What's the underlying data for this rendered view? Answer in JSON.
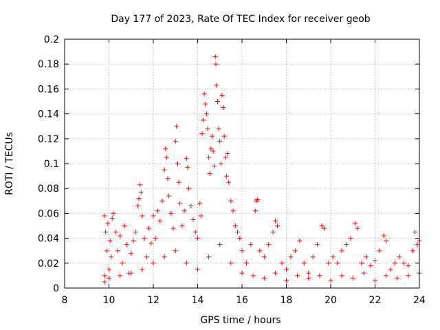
{
  "chart_data": {
    "type": "scatter",
    "title": "Day 177 of 2023, Rate Of TEC Index for receiver geob",
    "xlabel": "GPS time / hours",
    "ylabel": "ROTI / TECUs",
    "xlim": [
      8,
      24
    ],
    "ylim": [
      0,
      0.2
    ],
    "x_ticks": [
      "8",
      "10",
      "12",
      "14",
      "16",
      "18",
      "20",
      "22",
      "24"
    ],
    "y_ticks": [
      "0",
      "0.02",
      "0.04",
      "0.06",
      "0.08",
      "0.1",
      "0.12",
      "0.14",
      "0.16",
      "0.18",
      "0.2"
    ],
    "grid": true,
    "marker": "+",
    "color": "#ff0000",
    "series": [
      {
        "name": "ROTI",
        "points": [
          [
            9.8,
            0.005
          ],
          [
            9.8,
            0.058
          ],
          [
            9.85,
            0.045
          ],
          [
            9.9,
            0.03
          ],
          [
            9.95,
            0.052
          ],
          [
            10.0,
            0.015
          ],
          [
            10.05,
            0.038
          ],
          [
            10.1,
            0.025
          ],
          [
            10.15,
            0.056
          ],
          [
            10.2,
            0.06
          ],
          [
            10.3,
            0.045
          ],
          [
            10.4,
            0.03
          ],
          [
            10.5,
            0.042
          ],
          [
            10.6,
            0.02
          ],
          [
            10.7,
            0.05
          ],
          [
            10.8,
            0.035
          ],
          [
            10.9,
            0.012
          ],
          [
            11.0,
            0.028
          ],
          [
            11.1,
            0.038
          ],
          [
            11.2,
            0.045
          ],
          [
            11.3,
            0.066
          ],
          [
            11.35,
            0.072
          ],
          [
            11.4,
            0.083
          ],
          [
            11.45,
            0.077
          ],
          [
            11.5,
            0.058
          ],
          [
            11.6,
            0.04
          ],
          [
            11.7,
            0.025
          ],
          [
            11.8,
            0.048
          ],
          [
            11.9,
            0.036
          ],
          [
            12.0,
            0.058
          ],
          [
            12.1,
            0.04
          ],
          [
            12.2,
            0.062
          ],
          [
            12.3,
            0.054
          ],
          [
            12.4,
            0.07
          ],
          [
            12.5,
            0.095
          ],
          [
            12.55,
            0.112
          ],
          [
            12.6,
            0.105
          ],
          [
            12.65,
            0.088
          ],
          [
            12.7,
            0.074
          ],
          [
            12.8,
            0.06
          ],
          [
            12.9,
            0.048
          ],
          [
            13.0,
            0.118
          ],
          [
            13.05,
            0.13
          ],
          [
            13.1,
            0.1
          ],
          [
            13.15,
            0.085
          ],
          [
            13.2,
            0.068
          ],
          [
            13.3,
            0.05
          ],
          [
            13.4,
            0.062
          ],
          [
            13.5,
            0.104
          ],
          [
            13.55,
            0.097
          ],
          [
            13.6,
            0.08
          ],
          [
            13.7,
            0.066
          ],
          [
            13.8,
            0.055
          ],
          [
            13.9,
            0.045
          ],
          [
            14.0,
            0.04
          ],
          [
            14.1,
            0.068
          ],
          [
            14.15,
            0.058
          ],
          [
            14.2,
            0.124
          ],
          [
            14.25,
            0.135
          ],
          [
            14.3,
            0.156
          ],
          [
            14.35,
            0.148
          ],
          [
            14.4,
            0.14
          ],
          [
            14.45,
            0.128
          ],
          [
            14.5,
            0.105
          ],
          [
            14.55,
            0.092
          ],
          [
            14.6,
            0.112
          ],
          [
            14.65,
            0.122
          ],
          [
            14.7,
            0.11
          ],
          [
            14.75,
            0.098
          ],
          [
            14.8,
            0.186
          ],
          [
            14.82,
            0.18
          ],
          [
            14.85,
            0.163
          ],
          [
            14.9,
            0.15
          ],
          [
            14.95,
            0.128
          ],
          [
            15.0,
            0.118
          ],
          [
            15.05,
            0.1
          ],
          [
            15.1,
            0.155
          ],
          [
            15.15,
            0.145
          ],
          [
            15.2,
            0.122
          ],
          [
            15.25,
            0.105
          ],
          [
            15.3,
            0.09
          ],
          [
            15.35,
            0.108
          ],
          [
            15.4,
            0.085
          ],
          [
            15.5,
            0.07
          ],
          [
            15.6,
            0.062
          ],
          [
            15.7,
            0.05
          ],
          [
            15.8,
            0.045
          ],
          [
            15.9,
            0.04
          ],
          [
            16.0,
            0.03
          ],
          [
            16.2,
            0.02
          ],
          [
            16.4,
            0.035
          ],
          [
            16.6,
            0.062
          ],
          [
            16.65,
            0.07
          ],
          [
            16.7,
            0.071
          ],
          [
            16.8,
            0.03
          ],
          [
            17.0,
            0.025
          ],
          [
            17.2,
            0.035
          ],
          [
            17.4,
            0.045
          ],
          [
            17.5,
            0.054
          ],
          [
            17.6,
            0.05
          ],
          [
            17.8,
            0.02
          ],
          [
            18.0,
            0.015
          ],
          [
            18.2,
            0.025
          ],
          [
            18.4,
            0.03
          ],
          [
            18.6,
            0.038
          ],
          [
            18.8,
            0.02
          ],
          [
            19.0,
            0.012
          ],
          [
            19.2,
            0.025
          ],
          [
            19.4,
            0.035
          ],
          [
            19.6,
            0.05
          ],
          [
            19.7,
            0.048
          ],
          [
            19.9,
            0.02
          ],
          [
            20.1,
            0.025
          ],
          [
            20.3,
            0.02
          ],
          [
            20.5,
            0.03
          ],
          [
            20.7,
            0.035
          ],
          [
            20.9,
            0.04
          ],
          [
            21.1,
            0.052
          ],
          [
            21.2,
            0.048
          ],
          [
            21.4,
            0.02
          ],
          [
            21.6,
            0.025
          ],
          [
            21.8,
            0.018
          ],
          [
            22.0,
            0.022
          ],
          [
            22.2,
            0.03
          ],
          [
            22.4,
            0.042
          ],
          [
            22.5,
            0.038
          ],
          [
            22.7,
            0.015
          ],
          [
            22.9,
            0.02
          ],
          [
            23.1,
            0.025
          ],
          [
            23.3,
            0.02
          ],
          [
            23.5,
            0.018
          ],
          [
            23.7,
            0.03
          ],
          [
            23.8,
            0.045
          ],
          [
            23.9,
            0.035
          ],
          [
            24.0,
            0.038
          ],
          [
            9.8,
            0.01
          ],
          [
            10.0,
            0.008
          ],
          [
            10.5,
            0.01
          ],
          [
            11.0,
            0.012
          ],
          [
            11.5,
            0.015
          ],
          [
            12.0,
            0.02
          ],
          [
            12.5,
            0.025
          ],
          [
            13.0,
            0.03
          ],
          [
            13.5,
            0.02
          ],
          [
            14.0,
            0.015
          ],
          [
            14.5,
            0.025
          ],
          [
            15.0,
            0.035
          ],
          [
            15.5,
            0.02
          ],
          [
            16.0,
            0.012
          ],
          [
            16.5,
            0.01
          ],
          [
            17.0,
            0.008
          ],
          [
            17.5,
            0.012
          ],
          [
            18.0,
            0.006
          ],
          [
            18.5,
            0.01
          ],
          [
            19.0,
            0.008
          ],
          [
            19.5,
            0.01
          ],
          [
            20.0,
            0.006
          ],
          [
            20.5,
            0.01
          ],
          [
            21.0,
            0.008
          ],
          [
            21.5,
            0.012
          ],
          [
            22.0,
            0.006
          ],
          [
            22.5,
            0.01
          ],
          [
            23.0,
            0.008
          ],
          [
            23.5,
            0.01
          ],
          [
            24.0,
            0.012
          ]
        ]
      }
    ]
  }
}
